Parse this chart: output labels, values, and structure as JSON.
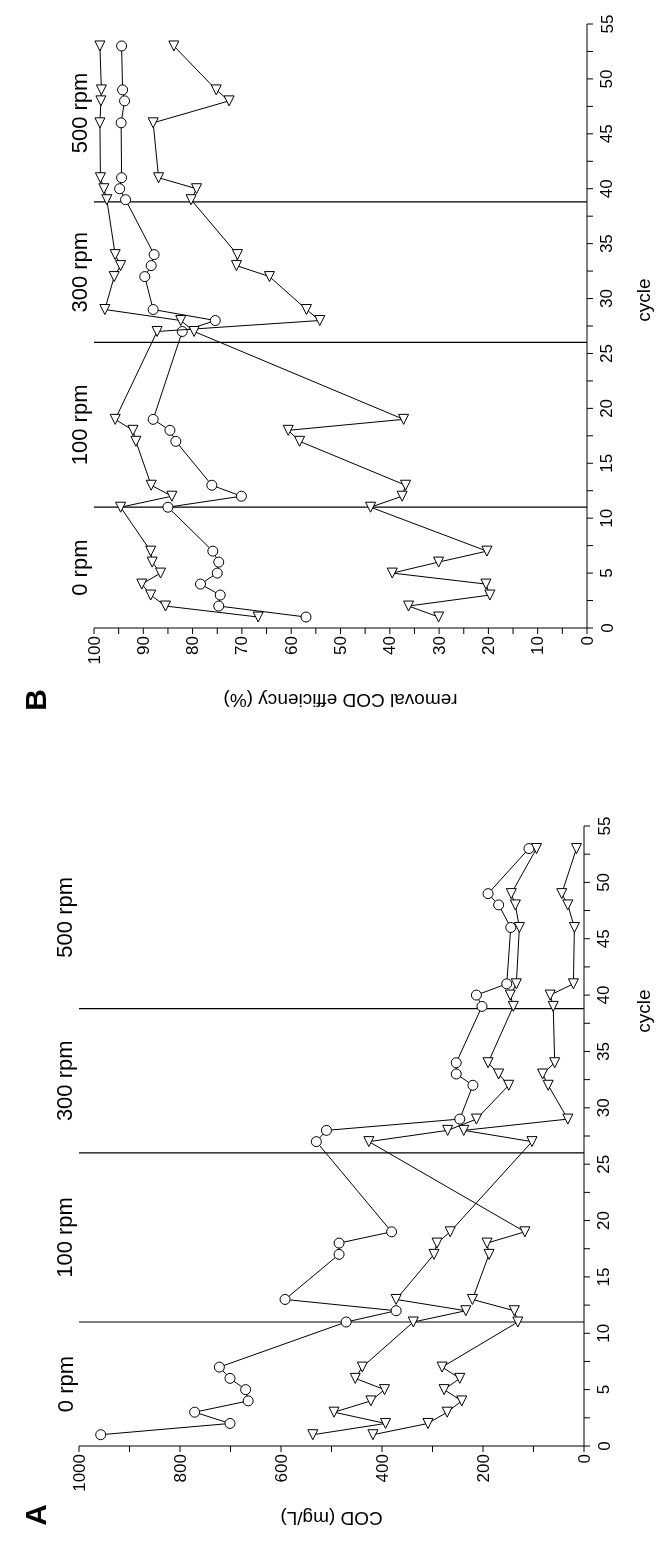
{
  "chart_data": [
    {
      "type": "line",
      "title": "A",
      "xlabel": "COD (mg/L)",
      "ylabel": "cycle",
      "series": [
        {
          "color": "#000000",
          "marker": "circle",
          "x": [
            957,
            701,
            771,
            665,
            670,
            701,
            722,
            471,
            372,
            592,
            485,
            485,
            381,
            530,
            510,
            246,
            220,
            253,
            253,
            202,
            213,
            153,
            145,
            169,
            190,
            109
          ],
          "values": [
            1,
            2,
            3,
            4,
            5,
            6,
            7,
            11,
            12,
            13,
            17,
            18,
            19,
            27,
            28,
            29,
            32,
            33,
            34,
            39,
            40,
            41,
            46,
            48,
            49,
            53
          ]
        },
        {
          "color": "#000000",
          "marker": "triangle",
          "x": [
            537,
            393,
            495,
            422,
            395,
            453,
            439,
            338,
            234,
            372,
            297,
            291,
            265,
            103,
            238,
            32,
            71,
            82,
            58,
            61,
            67,
            21,
            19,
            32,
            44,
            15
          ],
          "values": [
            1,
            2,
            3,
            4,
            5,
            6,
            7,
            11,
            12,
            13,
            17,
            18,
            19,
            27,
            28,
            29,
            32,
            33,
            34,
            39,
            40,
            41,
            46,
            48,
            49,
            53
          ]
        },
        {
          "color": "#000000",
          "marker": "triangle",
          "x": [
            418,
            309,
            271,
            242,
            277,
            246,
            281,
            131,
            138,
            221,
            188,
            192,
            117,
            426,
            270,
            213,
            149,
            169,
            190,
            140,
            146,
            134,
            128,
            136,
            144,
            94
          ],
          "values": [
            1,
            2,
            3,
            4,
            5,
            6,
            7,
            11,
            12,
            13,
            17,
            18,
            19,
            27,
            28,
            29,
            32,
            33,
            34,
            39,
            40,
            41,
            46,
            48,
            49,
            53
          ]
        }
      ],
      "xlim": [
        1000,
        0
      ],
      "xticks": [
        0,
        {
          "value": 100,
          "label": null
        },
        200,
        {
          "value": 300,
          "label": null
        },
        400,
        {
          "value": 500,
          "label": null
        },
        600,
        {
          "value": 700,
          "label": null
        },
        800,
        {
          "value": 900,
          "label": null
        },
        1000
      ],
      "ylim": [
        0,
        55
      ],
      "yticks": [
        0,
        {
          "value": 2.5,
          "label": null
        },
        5,
        {
          "value": 7.5,
          "label": null
        },
        10,
        {
          "value": 12.5,
          "label": null
        },
        15,
        {
          "value": 17.5,
          "label": null
        },
        20,
        {
          "value": 22.5,
          "label": null
        },
        25,
        {
          "value": 27.5,
          "label": null
        },
        30,
        {
          "value": 32.5,
          "label": null
        },
        35,
        {
          "value": 37.5,
          "label": null
        },
        40,
        {
          "value": 42.5,
          "label": null
        },
        45,
        {
          "value": 47.5,
          "label": null
        },
        50,
        {
          "value": 52.5,
          "label": null
        },
        55
      ],
      "ref_lines": [
        {
          "axis": "y",
          "value": 11,
          "color": "#000000"
        },
        {
          "axis": "y",
          "value": 26,
          "color": "#000000"
        },
        {
          "axis": "y",
          "value": 38.8,
          "color": "#000000"
        }
      ],
      "annotations": [
        "0 rpm",
        "100 rpm",
        "300 rpm",
        "500 rpm"
      ]
    },
    {
      "type": "line",
      "title": "B",
      "xlabel": "removal COD efficiency (%)",
      "ylabel": "cycle",
      "series": [
        {
          "color": "#000000",
          "marker": "circle",
          "x": [
            57,
            74.7,
            74.4,
            78.4,
            75,
            74.7,
            75.9,
            85,
            70.1,
            76.1,
            83.4,
            84.6,
            88,
            82.1,
            75.4,
            88,
            89.7,
            88.4,
            87.8,
            93.6,
            94.8,
            94.4,
            94.5,
            93.8,
            94.2,
            94.4
          ],
          "values": [
            1,
            2,
            3,
            4,
            5,
            6,
            7,
            11,
            12,
            13,
            17,
            18,
            19,
            27,
            28,
            29,
            32,
            33,
            34,
            39,
            40,
            41,
            46,
            48,
            49,
            53
          ]
        },
        {
          "color": "#000000",
          "marker": "triangle",
          "x": [
            66.7,
            85.5,
            88.5,
            90.3,
            86.5,
            88.2,
            88.5,
            94.6,
            84.2,
            88.4,
            91.5,
            92.1,
            95.7,
            87.2,
            54.2,
            56.9,
            64.4,
            71.1,
            70.9,
            80.3,
            79.2,
            86.9,
            88,
            72.6,
            75.2,
            83.8
          ],
          "values": [
            1,
            2,
            3,
            4,
            5,
            6,
            7,
            11,
            12,
            13,
            17,
            18,
            19,
            27,
            28,
            29,
            32,
            33,
            34,
            39,
            40,
            41,
            46,
            48,
            49,
            53
          ]
        },
        {
          "color": "#000000",
          "marker": "triangle",
          "x": [
            30.1,
            36.2,
            19.7,
            20.5,
            39.5,
            30.1,
            20.3,
            43.9,
            37.5,
            36.8,
            58.3,
            60.6,
            37.2,
            79.7,
            82.4,
            97.8,
            95.9,
            94.6,
            95.7,
            97.4,
            98,
            98.7,
            98.8,
            98.6,
            98.5,
            98.8
          ],
          "values": [
            1,
            2,
            3,
            4,
            5,
            6,
            7,
            11,
            12,
            13,
            17,
            18,
            19,
            27,
            28,
            29,
            32,
            33,
            34,
            39,
            40,
            41,
            46,
            48,
            49,
            53
          ]
        }
      ],
      "xlim": [
        100,
        0
      ],
      "xticks": [
        0,
        {
          "value": 5,
          "label": null
        },
        10,
        {
          "value": 15,
          "label": null
        },
        20,
        {
          "value": 25,
          "label": null
        },
        30,
        {
          "value": 35,
          "label": null
        },
        40,
        {
          "value": 45,
          "label": null
        },
        50,
        {
          "value": 55,
          "label": null
        },
        60,
        {
          "value": 65,
          "label": null
        },
        70,
        {
          "value": 75,
          "label": null
        },
        80,
        {
          "value": 85,
          "label": null
        },
        90,
        {
          "value": 95,
          "label": null
        },
        100
      ],
      "ylim": [
        0,
        55
      ],
      "yticks": [
        0,
        {
          "value": 2.5,
          "label": null
        },
        5,
        {
          "value": 7.5,
          "label": null
        },
        10,
        {
          "value": 12.5,
          "label": null
        },
        15,
        {
          "value": 17.5,
          "label": null
        },
        20,
        {
          "value": 22.5,
          "label": null
        },
        25,
        {
          "value": 27.5,
          "label": null
        },
        30,
        {
          "value": 32.5,
          "label": null
        },
        35,
        {
          "value": 37.5,
          "label": null
        },
        40,
        {
          "value": 42.5,
          "label": null
        },
        45,
        {
          "value": 47.5,
          "label": null
        },
        50,
        {
          "value": 52.5,
          "label": null
        },
        55
      ],
      "ref_lines": [
        {
          "axis": "y",
          "value": 11,
          "color": "#000000"
        },
        {
          "axis": "y",
          "value": 26,
          "color": "#000000"
        },
        {
          "axis": "y",
          "value": 38.8,
          "color": "#000000"
        }
      ],
      "annotations": [
        "0 rpm",
        "100 rpm",
        "300 rpm",
        "500 rpm"
      ]
    }
  ]
}
